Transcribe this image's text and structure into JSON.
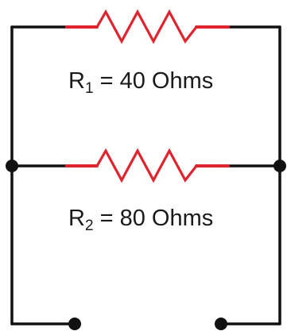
{
  "colors": {
    "wire": "#111111",
    "resistor": "#e0242f",
    "node": "#111111",
    "background": "#ffffff"
  },
  "resistors": [
    {
      "symbol": "R",
      "subscript": "1",
      "value_text": "= 40 Ohms",
      "ohms": 40
    },
    {
      "symbol": "R",
      "subscript": "2",
      "value_text": "= 80 Ohms",
      "ohms": 80
    }
  ],
  "terminals": [
    "left-terminal",
    "right-terminal"
  ]
}
